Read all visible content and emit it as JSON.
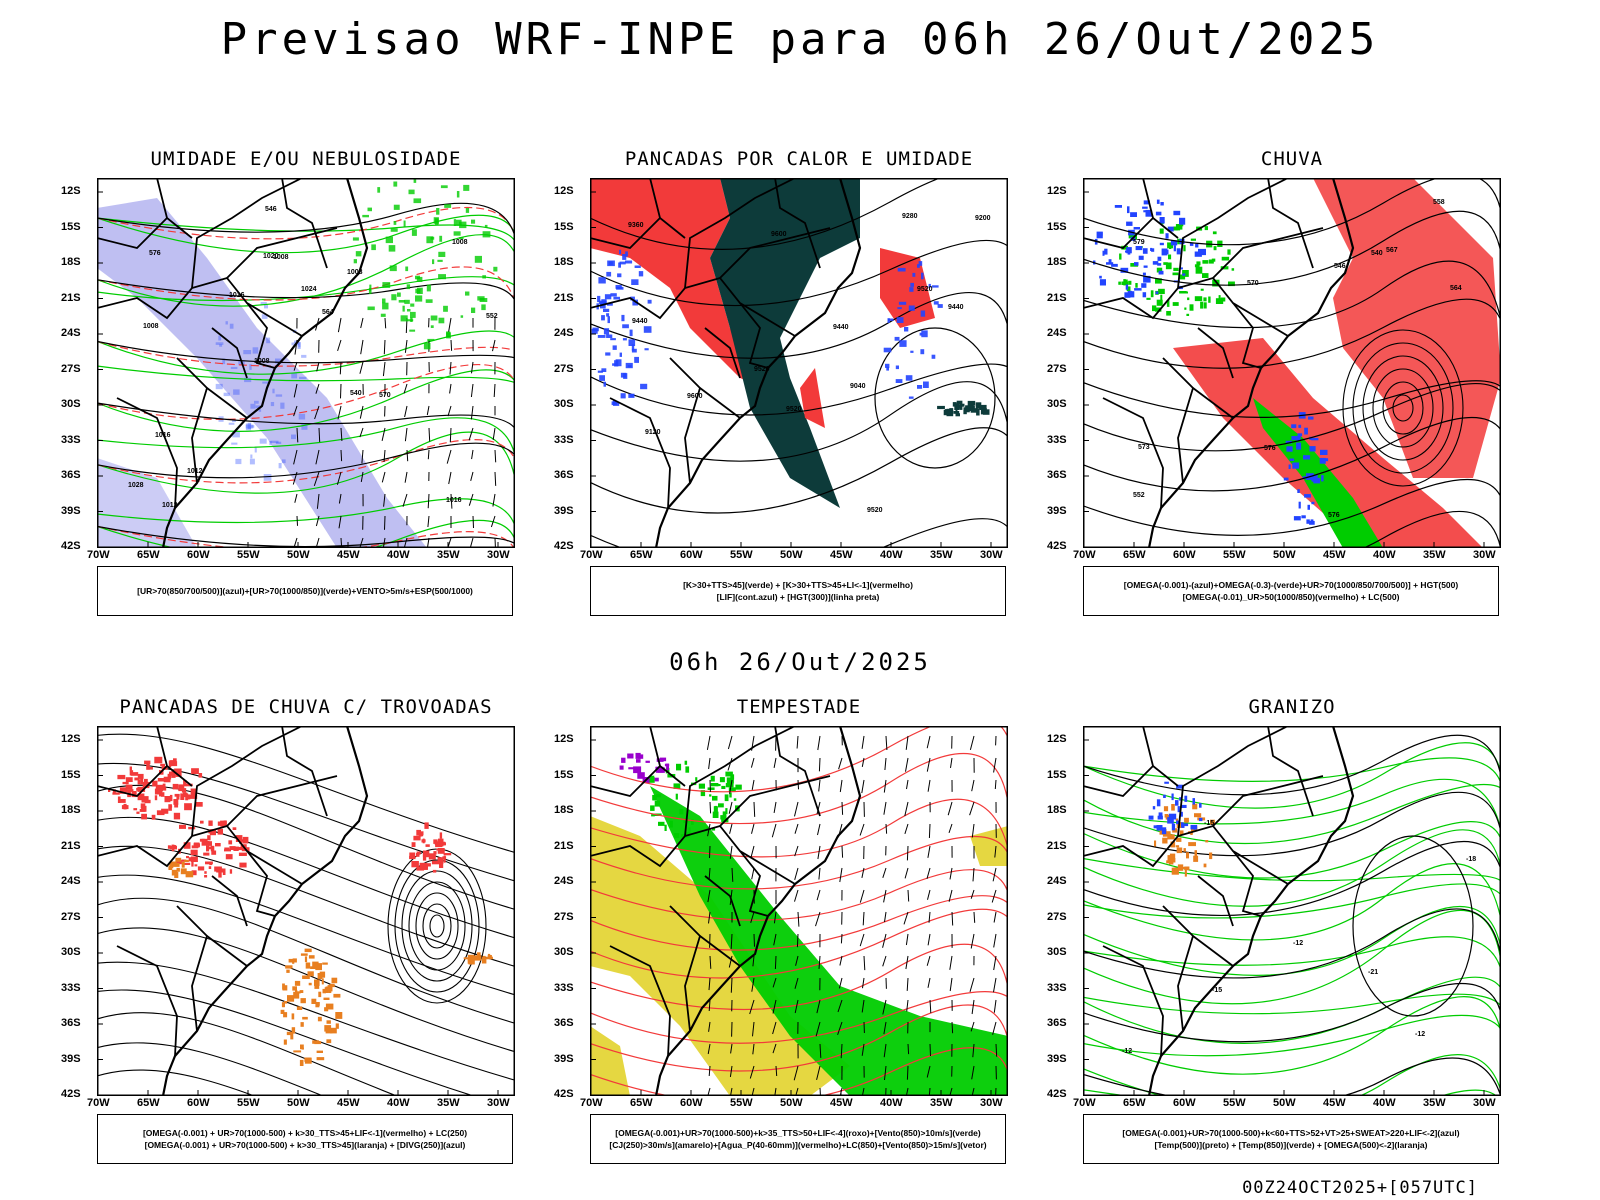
{
  "title": "Previsao WRF-INPE  para 06h 26/Out/2025",
  "mid_date": "06h 26/Out/2025",
  "footer": "00Z24OCT2025+[057UTC]",
  "lat_labels": [
    "12S",
    "15S",
    "18S",
    "21S",
    "24S",
    "27S",
    "30S",
    "33S",
    "36S",
    "39S",
    "42S"
  ],
  "lon_labels": [
    "70W",
    "65W",
    "60W",
    "55W",
    "50W",
    "45W",
    "40W",
    "35W",
    "30W"
  ],
  "colors": {
    "red": "#f23a3a",
    "green": "#00cc00",
    "blue": "#2244ff",
    "dark": "#0d3b3a",
    "yellow": "#e0d020",
    "orange": "#e87f20",
    "lavender": "#aaaaee",
    "purple": "#9900cc"
  },
  "panels": [
    {
      "title": "UMIDADE E/OU NEBULOSIDADE",
      "legend": [
        "[UR>70(850/700/500)](azul)+[UR>70(1000/850)](verde)+VENTO>5m/s+ESP(500/1000)"
      ],
      "contour_labels": [
        "1016",
        "1008",
        "1008",
        "1008",
        "1008",
        "1012",
        "1020",
        "1024",
        "1016",
        "1016",
        "1028",
        "1012",
        "1008",
        "564",
        "570",
        "576",
        "546",
        "552",
        "540"
      ]
    },
    {
      "title": "PANCADAS POR CALOR E UMIDADE",
      "legend": [
        "[K>30+TTS>45](verde) + [K>30+TTS>45+LI<-1](vermelho)",
        "[LIF](cont.azul) + [HGT(300)](linha preta)"
      ],
      "contour_labels": [
        "9600",
        "9600",
        "9520",
        "9440",
        "9360",
        "9280",
        "9200",
        "9120",
        "9040",
        "9520",
        "9440",
        "9520",
        "9440",
        "9520"
      ]
    },
    {
      "title": "CHUVA",
      "legend": [
        "[OMEGA(-0.001)-(azul)+OMEGA(-0.3)-(verde)+UR>70(1000/850/700/500)] + HGT(500)",
        "[OMEGA(-0.01)_UR>50(1000/850)(vermelho) + LC(500)"
      ],
      "contour_labels": [
        "576",
        "570",
        "564",
        "558",
        "552",
        "546",
        "540",
        "573",
        "579",
        "576",
        "567"
      ]
    },
    {
      "title": "PANCADAS DE CHUVA C/ TROVOADAS",
      "legend": [
        "[OMEGA(-0.001) + UR>70(1000-500) + k>30_TTS>45+LIF<-1](vermelho) + LC(250)",
        "[OMEGA(-0.001) + UR>70(1000-500) + k>30_TTS>45](laranja) + [DIVG(250)](azul)"
      ],
      "contour_labels": []
    },
    {
      "title": "TEMPESTADE",
      "legend": [
        "[OMEGA(-0.001)+UR>70(1000-500)+k>35_TTS>50+LIF<-4](roxo)+[Vento(850)>10m/s](verde)",
        "[CJ(250)>30m/s](amarelo)+[Agua_P(40-60mm)](vermelho)+LC(850)+[Vento(850)>15m/s](vetor)"
      ],
      "contour_labels": []
    },
    {
      "title": "GRANIZO",
      "legend": [
        "[OMEGA(-0.001)+UR>70(1000-500)+k<60+TTS>52+VT>25+SWEAT>220+LIF<-2](azul)",
        "[Temp(500)](preto) + [Temp(850)](verde) + [OMEGA(500)<-2](laranja)"
      ],
      "contour_labels": [
        "-12",
        "-12",
        "-15",
        "-15",
        "-18",
        "-21",
        "-12"
      ]
    }
  ]
}
